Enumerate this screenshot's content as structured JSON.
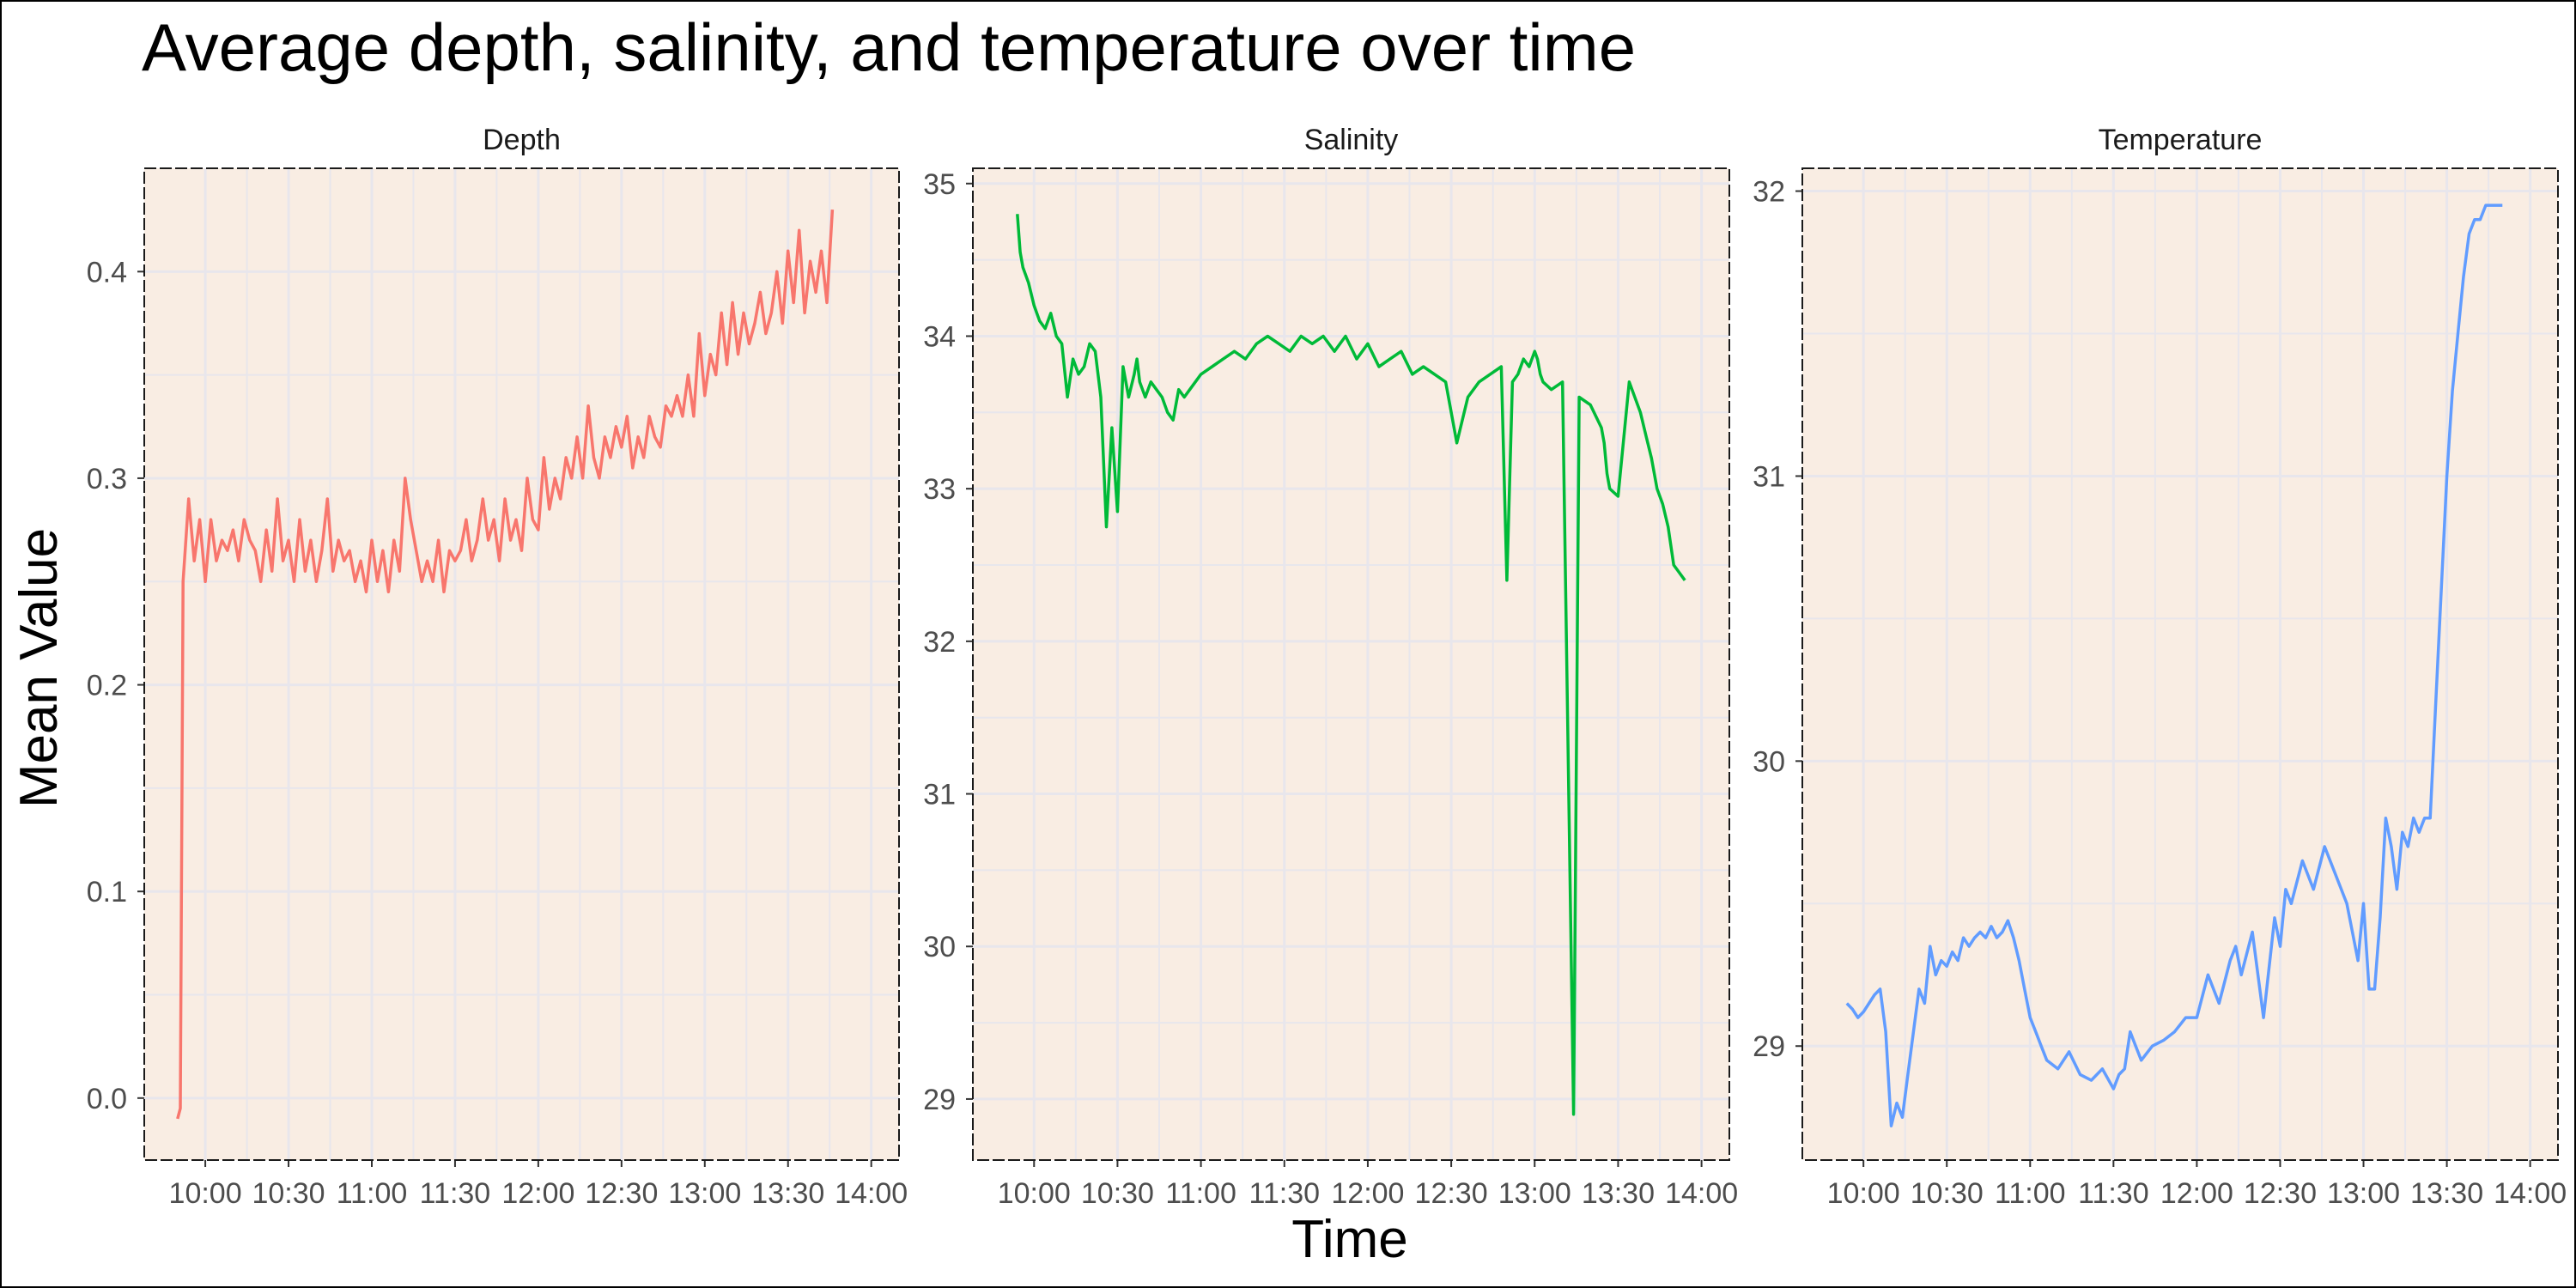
{
  "chart_data": {
    "type": "line",
    "title": "Average depth, salinity, and temperature over time",
    "xlabel": "Time",
    "ylabel": "Mean Value",
    "background_color": "#f9ede3",
    "grid_color": "#e8e6ec",
    "x_ticks": [
      "10:00",
      "10:30",
      "11:00",
      "11:30",
      "12:00",
      "12:30",
      "13:00",
      "13:30",
      "14:00"
    ],
    "xlim": [
      "09:38",
      "14:10"
    ],
    "grid": true,
    "legend": "none",
    "panels": [
      {
        "name": "Depth",
        "color": "#f8766d",
        "ylim": [
          -0.03,
          0.45
        ],
        "y_ticks": [
          "0.0",
          "0.1",
          "0.2",
          "0.3",
          "0.4"
        ],
        "y_tick_values": [
          0.0,
          0.1,
          0.2,
          0.3,
          0.4
        ],
        "x": [
          "09:50",
          "09:51",
          "09:52",
          "09:54",
          "09:56",
          "09:58",
          "10:00",
          "10:02",
          "10:04",
          "10:06",
          "10:08",
          "10:10",
          "10:12",
          "10:14",
          "10:16",
          "10:18",
          "10:20",
          "10:22",
          "10:24",
          "10:26",
          "10:28",
          "10:30",
          "10:32",
          "10:34",
          "10:36",
          "10:38",
          "10:40",
          "10:42",
          "10:44",
          "10:46",
          "10:48",
          "10:50",
          "10:52",
          "10:54",
          "10:56",
          "10:58",
          "11:00",
          "11:02",
          "11:04",
          "11:06",
          "11:08",
          "11:10",
          "11:12",
          "11:14",
          "11:16",
          "11:18",
          "11:20",
          "11:22",
          "11:24",
          "11:26",
          "11:28",
          "11:30",
          "11:32",
          "11:34",
          "11:36",
          "11:38",
          "11:40",
          "11:42",
          "11:44",
          "11:46",
          "11:48",
          "11:50",
          "11:52",
          "11:54",
          "11:56",
          "11:58",
          "12:00",
          "12:02",
          "12:04",
          "12:06",
          "12:08",
          "12:10",
          "12:12",
          "12:14",
          "12:16",
          "12:18",
          "12:20",
          "12:22",
          "12:24",
          "12:26",
          "12:28",
          "12:30",
          "12:32",
          "12:34",
          "12:36",
          "12:38",
          "12:40",
          "12:42",
          "12:44",
          "12:46",
          "12:48",
          "12:50",
          "12:52",
          "12:54",
          "12:56",
          "12:58",
          "13:00",
          "13:02",
          "13:04",
          "13:06",
          "13:08",
          "13:10",
          "13:12",
          "13:14",
          "13:16",
          "13:18",
          "13:20",
          "13:22",
          "13:24",
          "13:26",
          "13:28",
          "13:30",
          "13:32",
          "13:34",
          "13:36",
          "13:38",
          "13:40",
          "13:42",
          "13:44",
          "13:46"
        ],
        "values": [
          -0.01,
          -0.005,
          0.25,
          0.29,
          0.26,
          0.28,
          0.25,
          0.28,
          0.26,
          0.27,
          0.265,
          0.275,
          0.26,
          0.28,
          0.27,
          0.265,
          0.25,
          0.275,
          0.255,
          0.29,
          0.26,
          0.27,
          0.25,
          0.28,
          0.255,
          0.27,
          0.25,
          0.265,
          0.29,
          0.255,
          0.27,
          0.26,
          0.265,
          0.25,
          0.26,
          0.245,
          0.27,
          0.25,
          0.265,
          0.245,
          0.27,
          0.255,
          0.3,
          0.28,
          0.265,
          0.25,
          0.26,
          0.25,
          0.27,
          0.245,
          0.265,
          0.26,
          0.265,
          0.28,
          0.26,
          0.27,
          0.29,
          0.27,
          0.28,
          0.26,
          0.29,
          0.27,
          0.28,
          0.265,
          0.3,
          0.28,
          0.275,
          0.31,
          0.285,
          0.3,
          0.29,
          0.31,
          0.3,
          0.32,
          0.3,
          0.335,
          0.31,
          0.3,
          0.32,
          0.31,
          0.325,
          0.315,
          0.33,
          0.305,
          0.32,
          0.31,
          0.33,
          0.32,
          0.315,
          0.335,
          0.33,
          0.34,
          0.33,
          0.35,
          0.33,
          0.37,
          0.34,
          0.36,
          0.35,
          0.38,
          0.355,
          0.385,
          0.36,
          0.38,
          0.365,
          0.375,
          0.39,
          0.37,
          0.38,
          0.4,
          0.375,
          0.41,
          0.385,
          0.42,
          0.38,
          0.405,
          0.39,
          0.41,
          0.385,
          0.43
        ]
      },
      {
        "name": "Salinity",
        "color": "#00ba38",
        "ylim": [
          28.6,
          35.1
        ],
        "y_ticks": [
          "29",
          "30",
          "31",
          "32",
          "33",
          "34",
          "35"
        ],
        "y_tick_values": [
          29,
          30,
          31,
          32,
          33,
          34,
          35
        ],
        "x": [
          "09:54",
          "09:55",
          "09:56",
          "09:58",
          "10:00",
          "10:02",
          "10:04",
          "10:06",
          "10:08",
          "10:10",
          "10:12",
          "10:14",
          "10:16",
          "10:18",
          "10:20",
          "10:22",
          "10:24",
          "10:26",
          "10:28",
          "10:30",
          "10:32",
          "10:34",
          "10:36",
          "10:37",
          "10:38",
          "10:40",
          "10:42",
          "10:44",
          "10:46",
          "10:48",
          "10:50",
          "10:52",
          "10:54",
          "10:56",
          "10:58",
          "11:00",
          "11:04",
          "11:08",
          "11:12",
          "11:16",
          "11:20",
          "11:24",
          "11:28",
          "11:32",
          "11:36",
          "11:40",
          "11:44",
          "11:48",
          "11:52",
          "11:56",
          "12:00",
          "12:04",
          "12:08",
          "12:12",
          "12:16",
          "12:20",
          "12:24",
          "12:28",
          "12:32",
          "12:36",
          "12:40",
          "12:44",
          "12:48",
          "12:50",
          "12:52",
          "12:54",
          "12:56",
          "12:58",
          "13:00",
          "13:01",
          "13:02",
          "13:03",
          "13:06",
          "13:10",
          "13:14",
          "13:16",
          "13:20",
          "13:24",
          "13:25",
          "13:26",
          "13:27",
          "13:30",
          "13:34",
          "13:38",
          "13:40",
          "13:42",
          "13:44",
          "13:46",
          "13:48",
          "13:50",
          "13:52",
          "13:54"
        ],
        "values": [
          34.8,
          34.55,
          34.45,
          34.35,
          34.2,
          34.1,
          34.05,
          34.15,
          34.0,
          33.95,
          33.6,
          33.85,
          33.75,
          33.8,
          33.95,
          33.9,
          33.6,
          32.75,
          33.4,
          32.85,
          33.8,
          33.6,
          33.75,
          33.85,
          33.7,
          33.6,
          33.7,
          33.65,
          33.6,
          33.5,
          33.45,
          33.65,
          33.6,
          33.65,
          33.7,
          33.75,
          33.8,
          33.85,
          33.9,
          33.85,
          33.95,
          34.0,
          33.95,
          33.9,
          34.0,
          33.95,
          34.0,
          33.9,
          34.0,
          33.85,
          33.95,
          33.8,
          33.85,
          33.9,
          33.75,
          33.8,
          33.75,
          33.7,
          33.3,
          33.6,
          33.7,
          33.75,
          33.8,
          32.4,
          33.7,
          33.75,
          33.85,
          33.8,
          33.9,
          33.85,
          33.75,
          33.7,
          33.65,
          33.7,
          28.9,
          33.6,
          33.55,
          33.4,
          33.3,
          33.1,
          33.0,
          32.95,
          33.7,
          33.5,
          33.35,
          33.2,
          33.0,
          32.9,
          32.75,
          32.5,
          32.45,
          32.4
        ]
      },
      {
        "name": "Temperature",
        "color": "#619cff",
        "ylim": [
          28.6,
          32.08
        ],
        "y_ticks": [
          "29",
          "30",
          "31",
          "32"
        ],
        "y_tick_values": [
          29,
          30,
          31,
          32
        ],
        "x": [
          "09:54",
          "09:56",
          "09:58",
          "10:00",
          "10:02",
          "10:04",
          "10:06",
          "10:08",
          "10:10",
          "10:12",
          "10:14",
          "10:16",
          "10:18",
          "10:20",
          "10:22",
          "10:24",
          "10:26",
          "10:28",
          "10:30",
          "10:32",
          "10:34",
          "10:36",
          "10:38",
          "10:40",
          "10:42",
          "10:44",
          "10:46",
          "10:48",
          "10:50",
          "10:52",
          "10:54",
          "10:56",
          "10:58",
          "11:00",
          "11:02",
          "11:04",
          "11:06",
          "11:10",
          "11:14",
          "11:18",
          "11:22",
          "11:26",
          "11:30",
          "11:32",
          "11:34",
          "11:36",
          "11:38",
          "11:40",
          "11:44",
          "11:48",
          "11:52",
          "11:56",
          "12:00",
          "12:04",
          "12:08",
          "12:12",
          "12:14",
          "12:16",
          "12:20",
          "12:24",
          "12:28",
          "12:30",
          "12:32",
          "12:34",
          "12:38",
          "12:42",
          "12:46",
          "12:50",
          "12:54",
          "12:58",
          "13:00",
          "13:02",
          "13:04",
          "13:06",
          "13:08",
          "13:10",
          "13:12",
          "13:14",
          "13:16",
          "13:18",
          "13:20",
          "13:22",
          "13:24",
          "13:26",
          "13:28",
          "13:30",
          "13:32",
          "13:34",
          "13:36",
          "13:38",
          "13:40",
          "13:42",
          "13:44",
          "13:46",
          "13:48",
          "13:50"
        ],
        "values": [
          29.15,
          29.13,
          29.1,
          29.12,
          29.15,
          29.18,
          29.2,
          29.05,
          28.72,
          28.8,
          28.75,
          28.9,
          29.05,
          29.2,
          29.15,
          29.35,
          29.25,
          29.3,
          29.28,
          29.33,
          29.3,
          29.38,
          29.35,
          29.38,
          29.4,
          29.38,
          29.42,
          29.38,
          29.4,
          29.44,
          29.38,
          29.3,
          29.2,
          29.1,
          29.05,
          29.0,
          28.95,
          28.92,
          28.98,
          28.9,
          28.88,
          28.92,
          28.85,
          28.9,
          28.92,
          29.05,
          29.0,
          28.95,
          29.0,
          29.02,
          29.05,
          29.1,
          29.1,
          29.25,
          29.15,
          29.3,
          29.35,
          29.25,
          29.4,
          29.1,
          29.45,
          29.35,
          29.55,
          29.5,
          29.65,
          29.55,
          29.7,
          29.6,
          29.5,
          29.3,
          29.5,
          29.2,
          29.2,
          29.45,
          29.8,
          29.7,
          29.55,
          29.75,
          29.7,
          29.8,
          29.75,
          29.8,
          29.8,
          30.2,
          30.6,
          31.0,
          31.3,
          31.5,
          31.7,
          31.85,
          31.9,
          31.9,
          31.95,
          31.95,
          31.95,
          31.95
        ]
      }
    ]
  }
}
